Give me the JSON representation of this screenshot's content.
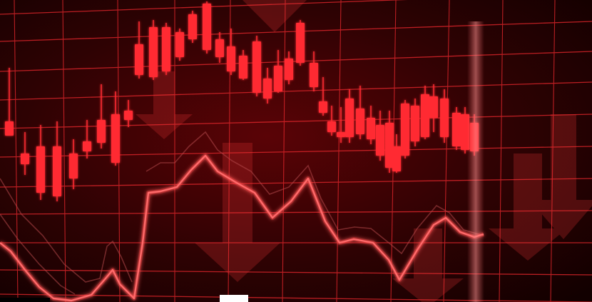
{
  "scene": {
    "background_color": "#2a0203",
    "grid_color": "#e0262b",
    "candle_color": "#ff2a30",
    "line_color": "#ff3b3b",
    "shadow_line_color": "#b3484a",
    "arrow_color": "#ff3b3b",
    "icons": [
      "down-arrow-icon"
    ]
  }
}
